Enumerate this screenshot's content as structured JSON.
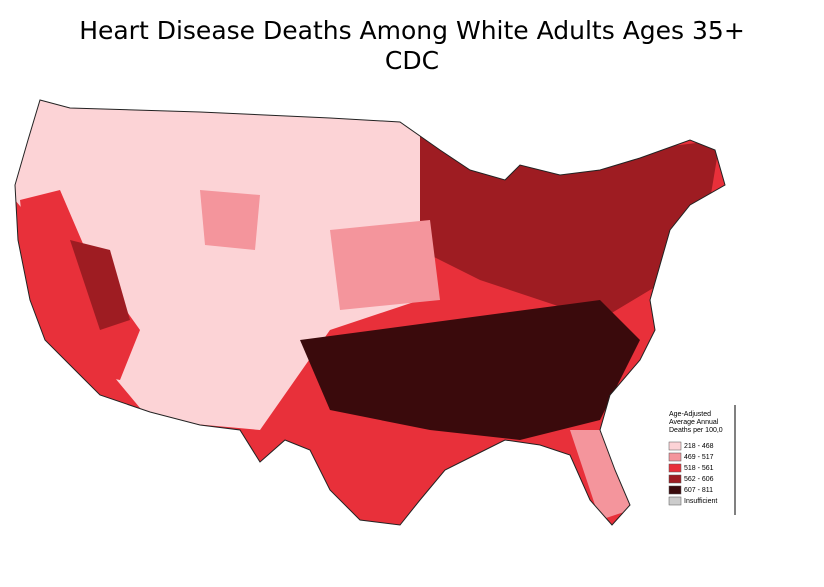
{
  "title": "Heart Disease Deaths Among White Adults Ages 35+",
  "subtitle": "CDC",
  "legend": {
    "title_lines": [
      "Age-Adjusted",
      "Average Annual",
      "Deaths per 100,0"
    ],
    "items": [
      {
        "label": "218 - 468",
        "color": "#fcd3d6"
      },
      {
        "label": "469 - 517",
        "color": "#f4959c"
      },
      {
        "label": "518 - 561",
        "color": "#e8303a"
      },
      {
        "label": "562 - 606",
        "color": "#9e1c22"
      },
      {
        "label": "607 - 811",
        "color": "#3a0a0c"
      },
      {
        "label": "Insufficient",
        "color": "#cccccc"
      }
    ]
  }
}
